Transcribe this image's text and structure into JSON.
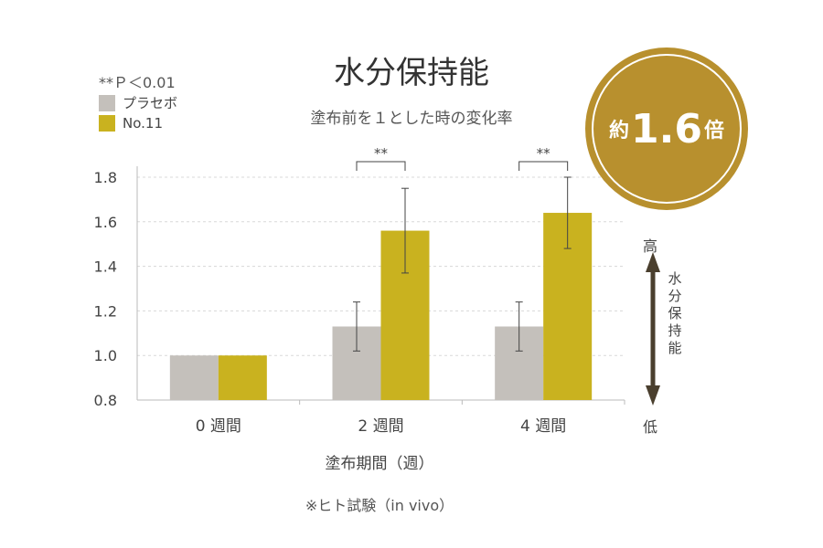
{
  "header": {
    "title": "水分保持能",
    "subtitle": "塗布前を１とした時の変化率"
  },
  "significance_note": "**Ｐ＜0.01",
  "legend": [
    {
      "label": "プラセボ",
      "color": "#c4c0bb"
    },
    {
      "label": "No.11",
      "color": "#c9b21f"
    }
  ],
  "badge": {
    "prefix": "約",
    "value": "1.6",
    "suffix": "倍",
    "color": "#b8902e"
  },
  "scale_indicator": {
    "high": "高",
    "low": "低",
    "label": "水分保持能"
  },
  "footnote": "※ヒト試験（in vivo）",
  "chart_data": {
    "type": "bar",
    "title": "水分保持能",
    "subtitle": "塗布前を１とした時の変化率",
    "xlabel": "塗布期間（週）",
    "ylabel": "",
    "categories": [
      "0 週間",
      "2 週間",
      "4 週間"
    ],
    "series": [
      {
        "name": "プラセボ",
        "color": "#c4c0bb",
        "values": [
          1.0,
          1.13,
          1.13
        ],
        "error": [
          0,
          0.11,
          0.11
        ]
      },
      {
        "name": "No.11",
        "color": "#c9b21f",
        "values": [
          1.0,
          1.56,
          1.64
        ],
        "error": [
          0,
          0.19,
          0.16
        ]
      }
    ],
    "ylim": [
      0.8,
      1.8
    ],
    "yticks": [
      "1.8",
      "1.6",
      "1.4",
      "1.2",
      "1.0",
      "0.8"
    ],
    "ytick_values": [
      1.8,
      1.6,
      1.4,
      1.2,
      1.0,
      0.8
    ],
    "grid": true,
    "significance": [
      {
        "category": 1,
        "label": "**"
      },
      {
        "category": 2,
        "label": "**"
      }
    ],
    "legend_position": "top-left"
  }
}
